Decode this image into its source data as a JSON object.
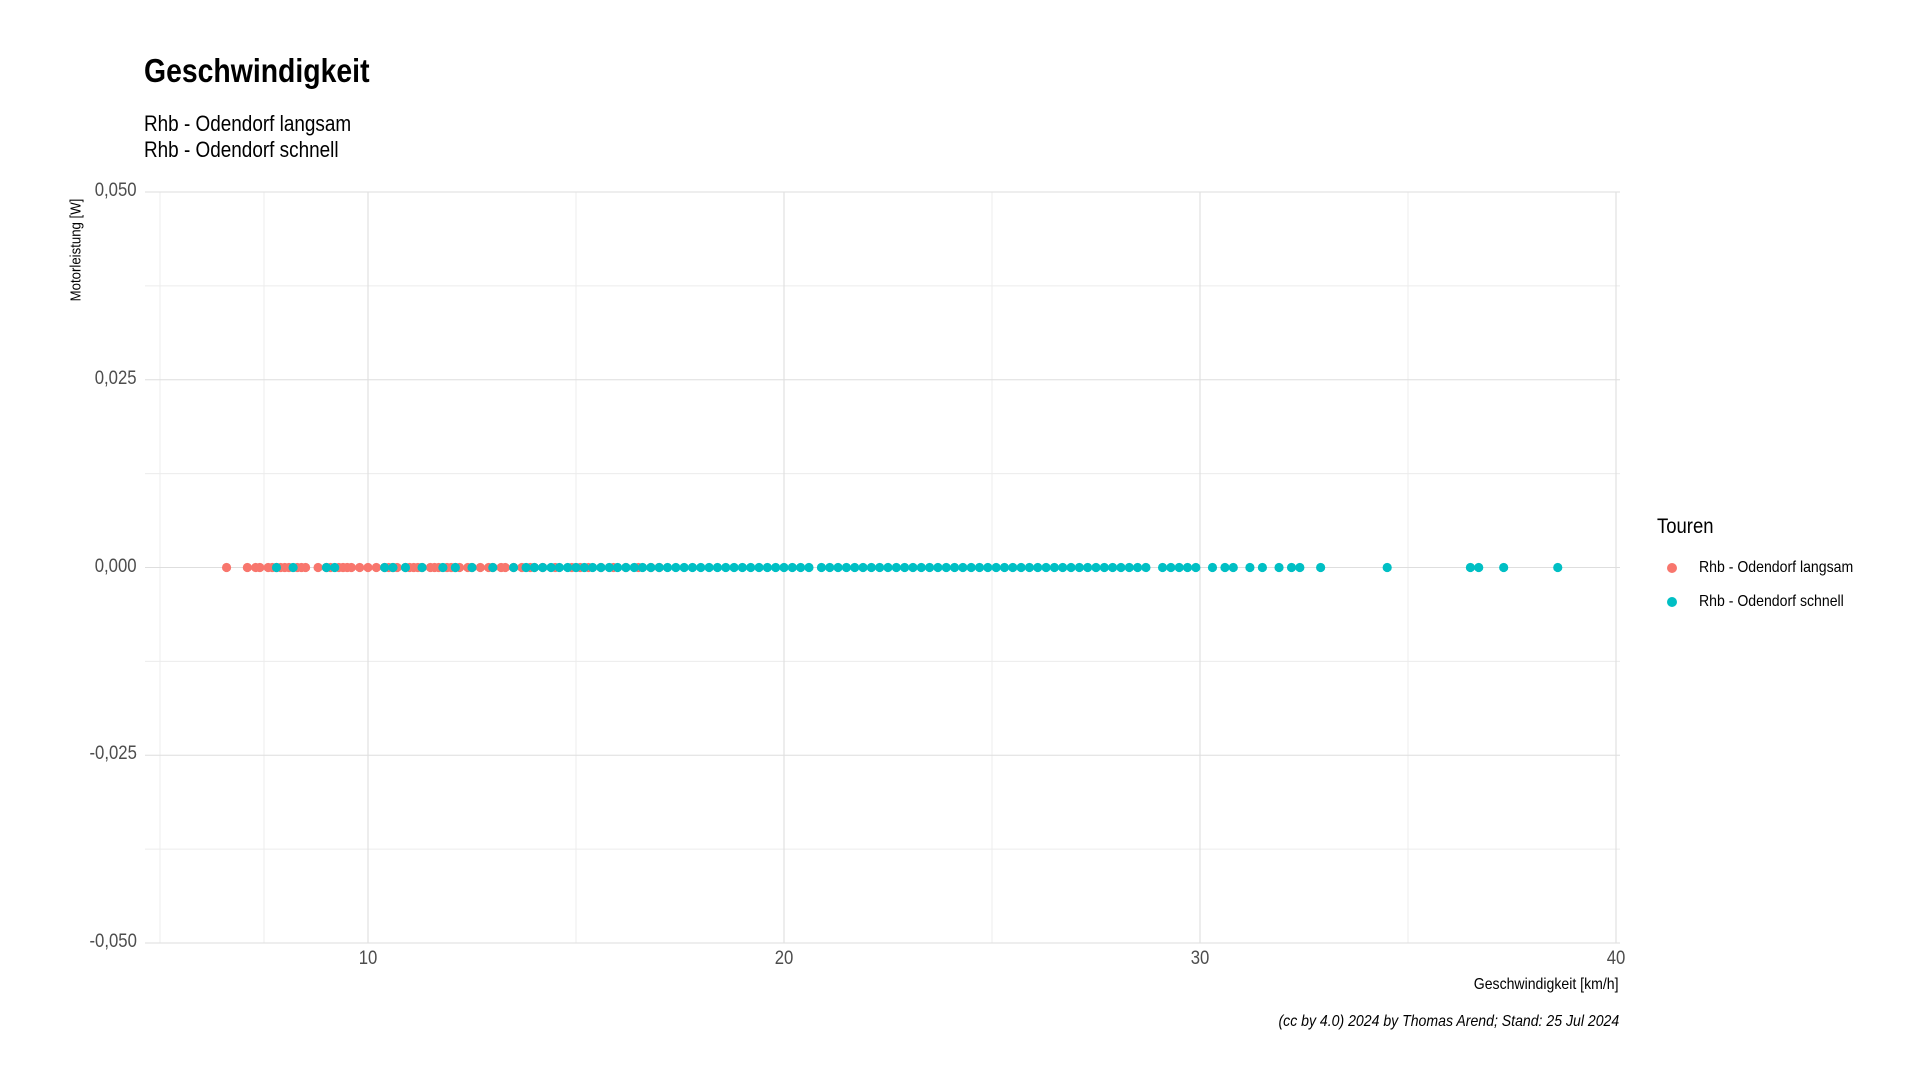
{
  "chart_data": {
    "type": "scatter",
    "title": "Geschwindigkeit",
    "subtitle_lines": [
      "Rhb - Odendorf langsam",
      "Rhb - Odendorf schnell"
    ],
    "xlabel": "Geschwindigkeit [km/h]",
    "ylabel": "Motorleistung [W]",
    "caption": "(cc by 4.0) 2024 by Thomas Arend; Stand: 25 Jul 2024",
    "xlim": [
      5,
      40
    ],
    "ylim": [
      -0.05,
      0.05
    ],
    "x_ticks": [
      10,
      20,
      30,
      40
    ],
    "x_tick_labels": [
      "10",
      "20",
      "30",
      "40"
    ],
    "y_ticks": [
      -0.05,
      -0.025,
      0,
      0.025,
      0.05
    ],
    "y_tick_labels": [
      "-0,050",
      "-0,025",
      "0,000",
      "0,025",
      "0,050"
    ],
    "grid": true,
    "legend": {
      "title": "Touren",
      "position": "right"
    },
    "series": [
      {
        "name": "Rhb - Odendorf langsam",
        "color": "#F8766D",
        "y": 0,
        "x": [
          6.6,
          7.1,
          7.3,
          7.4,
          7.6,
          7.7,
          7.8,
          7.9,
          8.0,
          8.1,
          8.3,
          8.4,
          8.5,
          8.8,
          9.0,
          9.1,
          9.3,
          9.4,
          9.5,
          9.6,
          9.8,
          10.0,
          10.2,
          10.4,
          10.5,
          10.6,
          10.7,
          10.9,
          11.0,
          11.1,
          11.2,
          11.3,
          11.5,
          11.6,
          11.7,
          11.9,
          12.0,
          12.1,
          12.2,
          12.4,
          12.5,
          12.7,
          12.9,
          13.0,
          13.2,
          13.3,
          13.5,
          13.7,
          13.9,
          14.0,
          14.2,
          14.5,
          14.9,
          15.1,
          15.3,
          15.6,
          15.9,
          16.2,
          16.5,
          16.8,
          17.0
        ]
      },
      {
        "name": "Rhb - Odendorf schnell",
        "color": "#00BFC4",
        "y": 0,
        "x": [
          7.8,
          8.2,
          9.0,
          9.2,
          10.4,
          10.6,
          10.9,
          11.3,
          11.8,
          12.1,
          12.5,
          13.0,
          13.5,
          13.8,
          14.0,
          14.2,
          14.4,
          14.6,
          14.8,
          15.0,
          15.2,
          15.4,
          15.6,
          15.8,
          16.0,
          16.2,
          16.4,
          16.6,
          16.8,
          17.0,
          17.2,
          17.4,
          17.6,
          17.8,
          18.0,
          18.2,
          18.4,
          18.6,
          18.8,
          19.0,
          19.2,
          19.4,
          19.6,
          19.8,
          20.0,
          20.2,
          20.4,
          20.6,
          20.9,
          21.1,
          21.3,
          21.5,
          21.7,
          21.9,
          22.1,
          22.3,
          22.5,
          22.7,
          22.9,
          23.1,
          23.3,
          23.5,
          23.7,
          23.9,
          24.1,
          24.3,
          24.5,
          24.7,
          24.9,
          25.1,
          25.3,
          25.5,
          25.7,
          25.9,
          26.1,
          26.3,
          26.5,
          26.7,
          26.9,
          27.1,
          27.3,
          27.5,
          27.7,
          27.9,
          28.1,
          28.3,
          28.5,
          28.7,
          29.1,
          29.3,
          29.5,
          29.7,
          29.9,
          30.3,
          30.6,
          30.8,
          31.2,
          31.5,
          31.9,
          32.2,
          32.4,
          32.9,
          34.5,
          36.5,
          36.7,
          37.3,
          38.6
        ]
      }
    ]
  }
}
